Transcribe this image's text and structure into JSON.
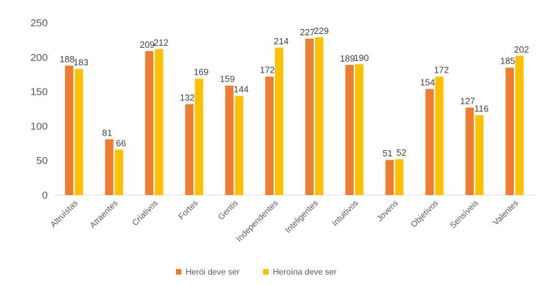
{
  "chart_data": {
    "type": "bar",
    "categories": [
      "Altruístas",
      "Atraentes",
      "Criativos",
      "Fortes",
      "Gentis",
      "Independentes",
      "Inteligentes",
      "Intuitivos",
      "Jovens",
      "Objetivos",
      "Sensíveis",
      "Valentes"
    ],
    "series": [
      {
        "name": "Herói deve ser",
        "color": "#ED7D31",
        "values": [
          188,
          81,
          209,
          132,
          159,
          172,
          227,
          189,
          51,
          154,
          127,
          185
        ]
      },
      {
        "name": "Heroína deve ser",
        "color": "#FFC000",
        "values": [
          183,
          66,
          212,
          169,
          144,
          214,
          229,
          190,
          52,
          172,
          116,
          202
        ]
      }
    ],
    "y_ticks": [
      "0",
      "50",
      "100",
      "150",
      "200",
      "250"
    ],
    "ylim": [
      0,
      250
    ],
    "grid": false,
    "legend_position": "bottom"
  }
}
